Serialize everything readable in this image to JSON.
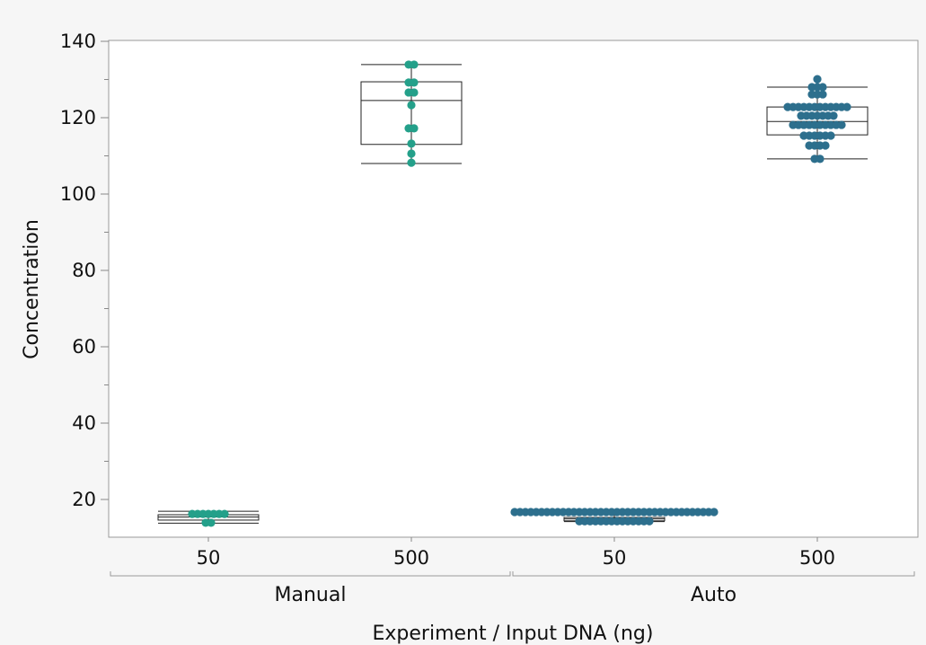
{
  "chart_data": {
    "type": "box-beeswarm",
    "xlabel": "Experiment / Input DNA (ng)",
    "ylabel": "Concentration",
    "ylim": [
      10,
      140
    ],
    "yticks": [
      20,
      40,
      60,
      80,
      100,
      120,
      140
    ],
    "grid": false,
    "groups": [
      {
        "experiment": "Manual",
        "input": "50",
        "color": "#24a08a",
        "box": {
          "min": 13.8,
          "q1": 14.6,
          "median": 15.4,
          "q3": 16.0,
          "max": 16.9
        },
        "points": [
          16.2,
          16.2,
          16.2,
          16.2,
          16.2,
          16.2,
          16.2,
          13.9,
          13.9
        ]
      },
      {
        "experiment": "Manual",
        "input": "500",
        "color": "#24a08a",
        "box": {
          "min": 108.0,
          "q1": 113.0,
          "median": 124.5,
          "q3": 129.4,
          "max": 133.9
        },
        "points": [
          133.9,
          133.9,
          129.2,
          129.2,
          126.6,
          126.6,
          123.3,
          117.2,
          117.2,
          113.2,
          110.6,
          108.2
        ]
      },
      {
        "experiment": "Auto",
        "input": "50",
        "color": "#2d6f8d",
        "box": {
          "min": 14.2,
          "q1": 14.4,
          "median": 14.9,
          "q3": 15.3,
          "max": 16.7
        },
        "points": [
          16.7,
          16.7,
          16.7,
          16.7,
          16.7,
          16.7,
          16.7,
          16.7,
          16.7,
          16.7,
          16.7,
          16.7,
          16.7,
          16.7,
          16.7,
          16.7,
          16.7,
          16.7,
          16.7,
          16.7,
          16.7,
          16.7,
          16.7,
          16.7,
          16.7,
          16.7,
          16.7,
          16.7,
          16.7,
          16.7,
          16.7,
          16.7,
          16.7,
          16.7,
          16.7,
          16.7,
          16.7,
          16.7,
          14.3,
          14.3,
          14.3,
          14.3,
          14.3,
          14.3,
          14.3,
          14.3,
          14.3,
          14.3,
          14.3,
          14.3,
          14.3,
          14.3
        ]
      },
      {
        "experiment": "Auto",
        "input": "500",
        "color": "#2d6f8d",
        "box": {
          "min": 109.2,
          "q1": 115.5,
          "median": 119.0,
          "q3": 122.8,
          "max": 128.0
        },
        "points": [
          130.1,
          128,
          128,
          128,
          126.1,
          126.1,
          126.1,
          122.8,
          122.8,
          122.8,
          122.8,
          122.8,
          122.8,
          122.8,
          122.8,
          122.8,
          122.8,
          122.8,
          122.8,
          120.5,
          120.5,
          120.5,
          120.5,
          120.5,
          120.5,
          120.5,
          118.1,
          118.1,
          118.1,
          118.1,
          118.1,
          118.1,
          118.1,
          118.1,
          118.1,
          118.1,
          115.3,
          115.3,
          115.3,
          115.3,
          115.3,
          115.3,
          112.7,
          112.7,
          112.7,
          112.7,
          109.2,
          109.2
        ]
      }
    ],
    "experiments": [
      "Manual",
      "Auto"
    ]
  }
}
